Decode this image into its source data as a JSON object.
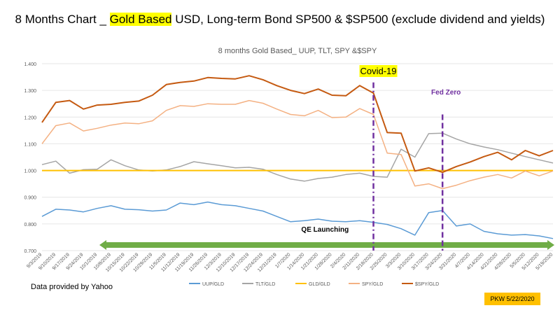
{
  "slide": {
    "title_pre": "8 Months Chart _ ",
    "title_highlight": "Gold Based",
    "title_post": " USD, Long-term Bond SP500 & $SP500 (exclude dividend and yields)",
    "data_source": "Data provided by Yahoo",
    "stamp": "PKW 5/22/2020"
  },
  "colors": {
    "UUP": "#5b9bd5",
    "TLT": "#a5a5a5",
    "GLD": "#ffc000",
    "SPY": "#f4b183",
    "SSPY": "#c55a11",
    "event_line": "#7030a0",
    "arrow": "#70ad47",
    "highlight": "#ffff00"
  },
  "chart_data": {
    "type": "line",
    "title": "8 months Gold Based_ UUP, TLT, SPY &$SPY",
    "xlabel": "",
    "ylabel": "",
    "ylim": [
      0.7,
      1.4
    ],
    "yticks": [
      "0.700",
      "0.800",
      "0.900",
      "1.000",
      "1.100",
      "1.200",
      "1.300",
      "1.400"
    ],
    "x": [
      "9/3/2019",
      "9/10/2019",
      "9/17/2019",
      "9/24/2019",
      "10/1/2019",
      "10/8/2019",
      "10/15/2019",
      "10/22/2019",
      "10/29/2019",
      "11/5/2019",
      "11/12/2019",
      "11/19/2019",
      "11/26/2019",
      "12/3/2019",
      "12/10/2019",
      "12/17/2019",
      "12/24/2019",
      "12/31/2019",
      "1/7/2020",
      "1/14/2020",
      "1/21/2020",
      "1/28/2020",
      "2/4/2020",
      "2/11/2020",
      "2/18/2020",
      "2/25/2020",
      "3/3/2020",
      "3/10/2020",
      "3/17/2020",
      "3/24/2020",
      "3/31/2020",
      "4/7/2020",
      "4/14/2020",
      "4/21/2020",
      "4/28/2020",
      "5/5/2020",
      "5/12/2020",
      "5/19/2020"
    ],
    "series": [
      {
        "name": "UUP/GLD",
        "color": "#5b9bd5",
        "values": [
          0.828,
          0.855,
          0.852,
          0.845,
          0.858,
          0.868,
          0.855,
          0.853,
          0.848,
          0.852,
          0.878,
          0.872,
          0.882,
          0.872,
          0.868,
          0.858,
          0.848,
          0.828,
          0.808,
          0.812,
          0.818,
          0.81,
          0.808,
          0.812,
          0.806,
          0.798,
          0.782,
          0.758,
          0.842,
          0.85,
          0.792,
          0.8,
          0.772,
          0.763,
          0.758,
          0.76,
          0.755,
          0.745
        ]
      },
      {
        "name": "TLT/GLD",
        "color": "#a5a5a5",
        "values": [
          1.022,
          1.035,
          0.99,
          1.003,
          1.005,
          1.04,
          1.018,
          1.002,
          0.998,
          1.002,
          1.015,
          1.033,
          1.025,
          1.018,
          1.01,
          1.012,
          1.005,
          0.985,
          0.968,
          0.96,
          0.97,
          0.975,
          0.985,
          0.99,
          0.978,
          0.975,
          1.08,
          1.05,
          1.138,
          1.14,
          1.118,
          1.1,
          1.088,
          1.078,
          1.065,
          1.052,
          1.04,
          1.028
        ]
      },
      {
        "name": "GLD/GLD",
        "color": "#ffc000",
        "values": [
          1,
          1,
          1,
          1,
          1,
          1,
          1,
          1,
          1,
          1,
          1,
          1,
          1,
          1,
          1,
          1,
          1,
          1,
          1,
          1,
          1,
          1,
          1,
          1,
          1,
          1,
          1,
          1,
          1,
          1,
          1,
          1,
          1,
          1,
          1,
          1,
          1,
          1
        ]
      },
      {
        "name": "SPY/GLD",
        "color": "#f4b183",
        "values": [
          1.1,
          1.168,
          1.178,
          1.148,
          1.158,
          1.17,
          1.178,
          1.175,
          1.186,
          1.225,
          1.243,
          1.24,
          1.25,
          1.248,
          1.248,
          1.262,
          1.252,
          1.23,
          1.21,
          1.205,
          1.225,
          1.198,
          1.2,
          1.232,
          1.21,
          1.065,
          1.06,
          0.942,
          0.95,
          0.932,
          0.945,
          0.962,
          0.975,
          0.985,
          0.972,
          0.998,
          0.98,
          0.998
        ]
      },
      {
        "name": "$SPY/GLD",
        "color": "#c55a11",
        "values": [
          1.18,
          1.255,
          1.262,
          1.23,
          1.245,
          1.248,
          1.255,
          1.26,
          1.282,
          1.322,
          1.33,
          1.335,
          1.348,
          1.345,
          1.343,
          1.355,
          1.34,
          1.318,
          1.3,
          1.288,
          1.305,
          1.282,
          1.28,
          1.318,
          1.29,
          1.142,
          1.14,
          0.998,
          1.01,
          0.993,
          1.015,
          1.032,
          1.052,
          1.068,
          1.04,
          1.075,
          1.055,
          1.075
        ]
      }
    ],
    "annotations": [
      {
        "text": "Covid-19",
        "x": "2/18/2020",
        "highlight": "#ffff00"
      },
      {
        "text": "Fed  Zero",
        "x": "3/24/2020"
      },
      {
        "text": "QE Launching",
        "x": "1/28/2020"
      }
    ],
    "legend_position": "bottom"
  }
}
